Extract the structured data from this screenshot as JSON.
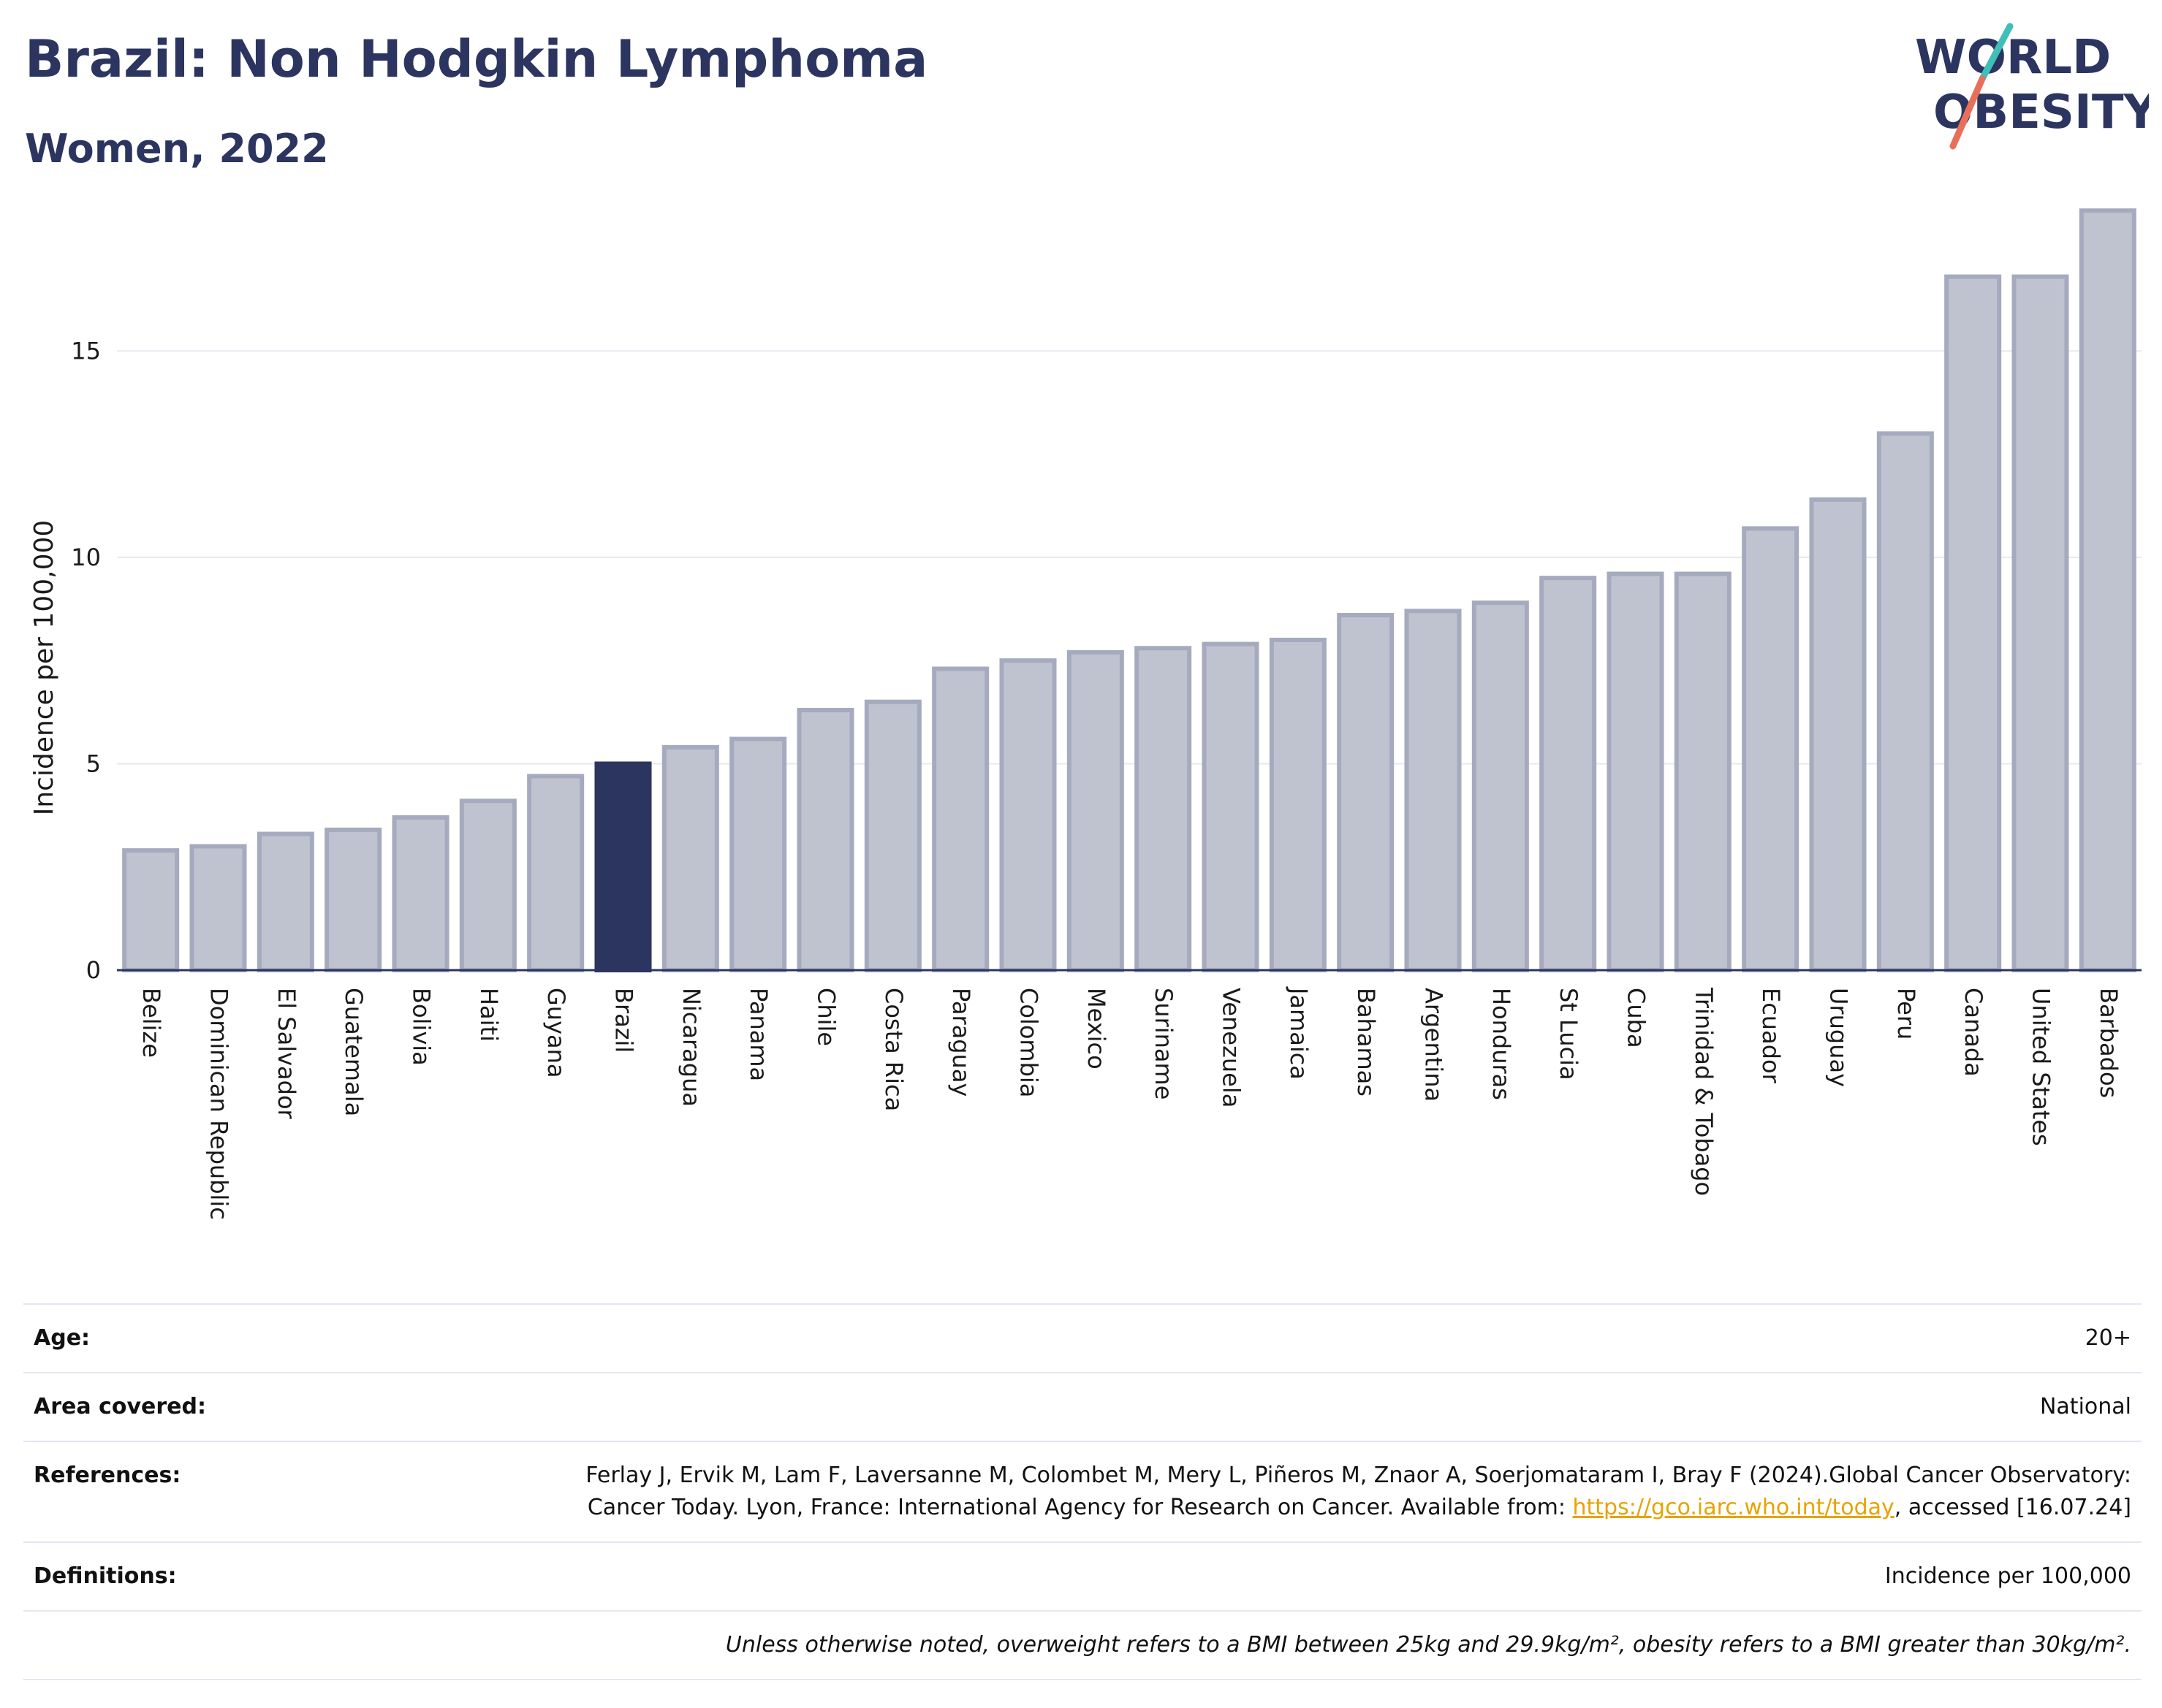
{
  "header": {
    "title": "Brazil: Non Hodgkin Lymphoma",
    "subtitle": "Women, 2022"
  },
  "logo": {
    "line1": "WORLD",
    "line2": "OBESITY",
    "brand_color": "#2b3560",
    "accent_teal": "#3fbfb8",
    "accent_coral": "#e8705a"
  },
  "chart_data": {
    "type": "bar",
    "ylabel": "Incidence per 100,000",
    "xlabel": "",
    "ylim": [
      0,
      18.9
    ],
    "yticks": [
      0,
      5,
      10,
      15
    ],
    "grid": true,
    "highlight_category": "Brazil",
    "colors": {
      "bar": "#bfc3d0",
      "bar_edge": "#a5aabe",
      "highlight": "#2b3560",
      "grid": "#e6e8ef"
    },
    "categories": [
      "Belize",
      "Dominican Republic",
      "El Salvador",
      "Guatemala",
      "Bolivia",
      "Haiti",
      "Guyana",
      "Brazil",
      "Nicaragua",
      "Panama",
      "Chile",
      "Costa Rica",
      "Paraguay",
      "Colombia",
      "Mexico",
      "Suriname",
      "Venezuela",
      "Jamaica",
      "Bahamas",
      "Argentina",
      "Honduras",
      "St Lucia",
      "Cuba",
      "Trinidad & Tobago",
      "Ecuador",
      "Uruguay",
      "Peru",
      "Canada",
      "United States",
      "Barbados"
    ],
    "values": [
      2.9,
      3.0,
      3.3,
      3.4,
      3.7,
      4.1,
      4.7,
      5.0,
      5.4,
      5.6,
      6.3,
      6.5,
      7.3,
      7.5,
      7.7,
      7.8,
      7.9,
      8.0,
      8.6,
      8.7,
      8.9,
      9.5,
      9.6,
      9.6,
      10.7,
      11.4,
      13.0,
      16.8,
      16.8,
      18.4
    ]
  },
  "info": {
    "age_label": "Age:",
    "age_value": "20+",
    "area_label": "Area covered:",
    "area_value": "National",
    "references_label": "References:",
    "references_text": "Ferlay J, Ervik M, Lam F, Laversanne M, Colombet M, Mery L, Piñeros M, Znaor A, Soerjomataram I, Bray F (2024).Global Cancer Observatory: Cancer Today. Lyon, France: International Agency for Research on Cancer. Available from: ",
    "references_link": "https://gco.iarc.who.int/today",
    "references_tail": ", accessed [16.07.24]",
    "definitions_label": "Definitions:",
    "definitions_value": "Incidence per 100,000",
    "note": "Unless otherwise noted, overweight refers to a BMI between 25kg and 29.9kg/m², obesity refers to a BMI greater than 30kg/m²."
  }
}
